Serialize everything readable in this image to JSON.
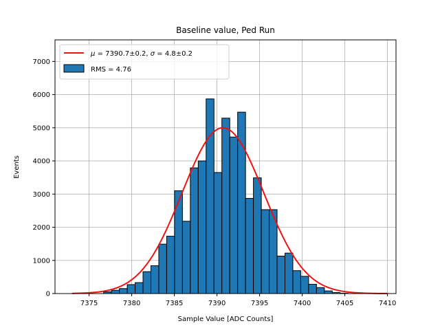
{
  "chart_data": {
    "type": "bar",
    "title": "Baseline value, Ped Run",
    "xlabel": "Sample Value [ADC Counts]",
    "ylabel": "Events",
    "xlim": [
      7371,
      7411
    ],
    "ylim": [
      0,
      7650
    ],
    "xticks": [
      7375,
      7380,
      7385,
      7390,
      7395,
      7400,
      7405,
      7410
    ],
    "yticks": [
      0,
      1000,
      2000,
      3000,
      4000,
      5000,
      6000,
      7000
    ],
    "grid": true,
    "legend_position": "top-left",
    "histogram": {
      "name": "RMS = 4.76",
      "color": "#1f77b4",
      "bin_edges": [
        7373.0,
        7373.925,
        7374.85,
        7375.775,
        7376.7,
        7377.625,
        7378.55,
        7379.475,
        7380.4,
        7381.325,
        7382.25,
        7383.175,
        7384.1,
        7385.025,
        7385.95,
        7386.875,
        7387.8,
        7388.725,
        7389.65,
        7390.575,
        7391.5,
        7392.425,
        7393.35,
        7394.275,
        7395.2,
        7396.125,
        7397.05,
        7397.975,
        7398.9,
        7399.825,
        7400.75,
        7401.675,
        7402.6,
        7403.525,
        7404.45,
        7405.375,
        7406.3,
        7407.225,
        7408.15,
        7409.075,
        7410.0
      ],
      "counts": [
        0,
        0,
        0,
        0,
        50,
        100,
        150,
        270,
        330,
        660,
        840,
        1490,
        1730,
        3100,
        2180,
        3790,
        4000,
        5870,
        3650,
        5290,
        4720,
        5470,
        2870,
        3490,
        2530,
        2530,
        1130,
        1220,
        690,
        520,
        280,
        180,
        80,
        30,
        10,
        0,
        0,
        0,
        0,
        0
      ]
    },
    "fit": {
      "name": "$\\mu = 7390.7\\pm0.2$, $\\sigma = 4.8\\pm0.2$",
      "mu_label": "μ",
      "text_1": "= 7390.7±0.2, ",
      "sigma_label": "σ",
      "text_2": "= 4.8±0.2",
      "mu": 7390.7,
      "sigma": 4.8,
      "amplitude": 5000,
      "x_range": [
        7373,
        7410
      ],
      "color": "#ee1111"
    }
  }
}
